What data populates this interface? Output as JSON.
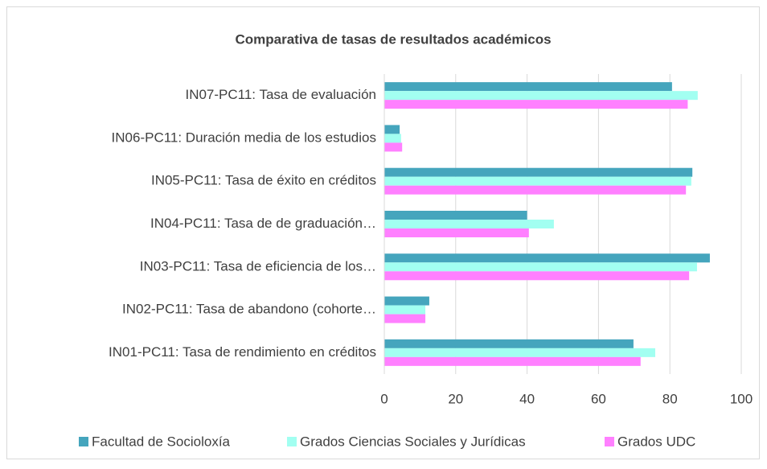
{
  "chart_data": {
    "type": "hbar",
    "title": "Comparativa de tasas de resultados académicos",
    "categories": [
      "IN07-PC11: Tasa de evaluación",
      "IN06-PC11: Duración media de los estudios",
      "IN05-PC11: Tasa de éxito en créditos",
      "IN04-PC11: Tasa de de graduación…",
      "IN03-PC11: Tasa de eficiencia de los…",
      "IN02-PC11: Tasa de abandono (cohorte…",
      "IN01-PC11: Tasa de rendimiento en créditos"
    ],
    "series": [
      {
        "name": "Facultad de Socioloxía",
        "color": "#45a5bd",
        "values": [
          80.6,
          4.3,
          86.3,
          40,
          91.2,
          12.6,
          69.8
        ]
      },
      {
        "name": "Grados Ciencias Sociales y Jurídicas",
        "color": "#a2fff1",
        "values": [
          87.8,
          4.7,
          86,
          47.5,
          87.6,
          11.5,
          75.9
        ]
      },
      {
        "name": "Grados UDC",
        "color": "#ff80ff",
        "values": [
          85,
          5,
          84.5,
          40.5,
          85.4,
          11.5,
          71.8
        ]
      }
    ],
    "xlim": [
      0,
      100
    ],
    "xticks": [
      0,
      20,
      40,
      60,
      80,
      100
    ],
    "grid": true,
    "legend": "bottom"
  }
}
